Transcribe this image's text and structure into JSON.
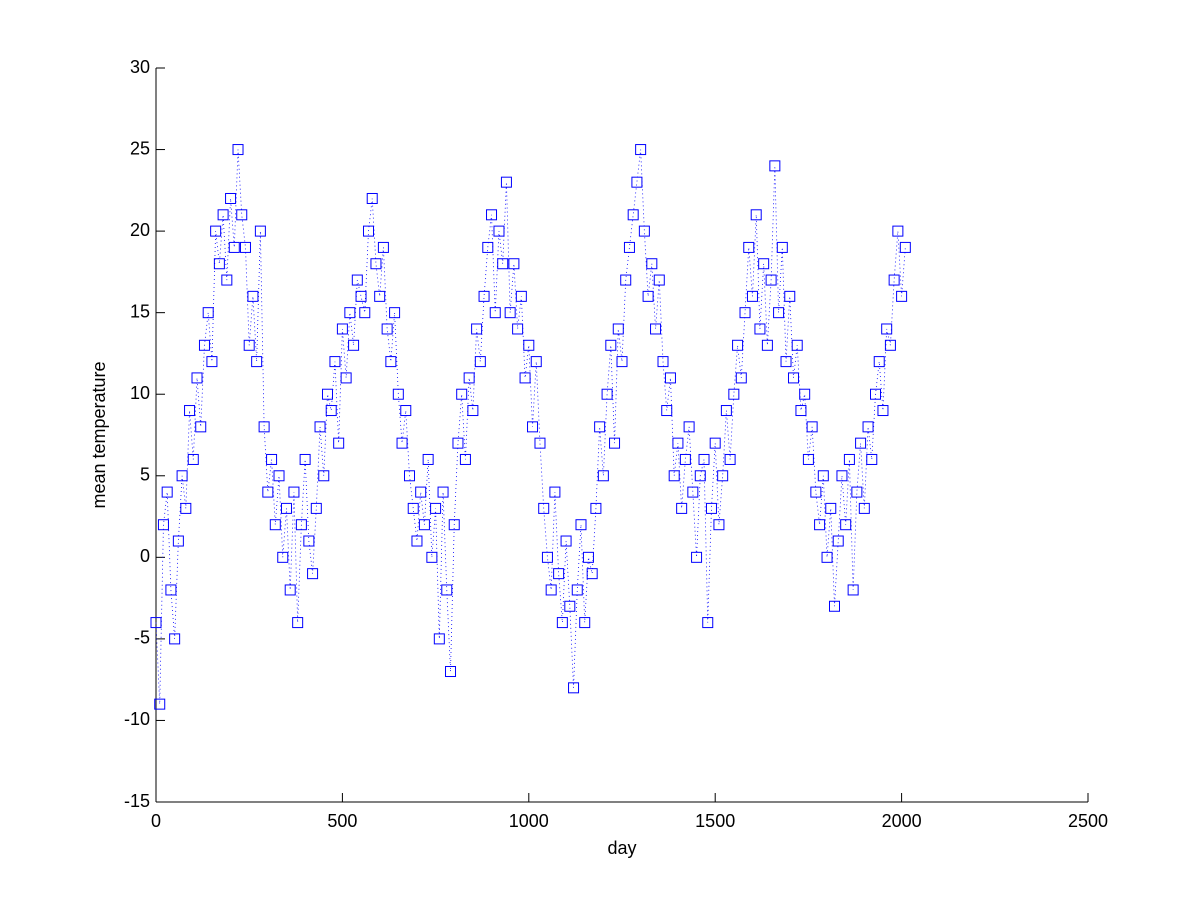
{
  "chart_data": {
    "type": "line",
    "xlabel": "day",
    "ylabel": "mean temperature",
    "xlim": [
      0,
      2500
    ],
    "ylim": [
      -15,
      30
    ],
    "xticks": [
      0,
      500,
      1000,
      1500,
      2000,
      2500
    ],
    "yticks": [
      -15,
      -10,
      -5,
      0,
      5,
      10,
      15,
      20,
      25,
      30
    ],
    "marker": "square",
    "linestyle": "dotted",
    "series": [
      {
        "color": "#0000ff",
        "x": [
          0,
          10,
          20,
          30,
          40,
          50,
          60,
          70,
          80,
          90,
          100,
          110,
          120,
          130,
          140,
          150,
          160,
          170,
          180,
          190,
          200,
          210,
          220,
          230,
          240,
          250,
          260,
          270,
          280,
          290,
          300,
          310,
          320,
          330,
          340,
          350,
          360,
          370,
          380,
          390,
          400,
          410,
          420,
          430,
          440,
          450,
          460,
          470,
          480,
          490,
          500,
          510,
          520,
          530,
          540,
          550,
          560,
          570,
          580,
          590,
          600,
          610,
          620,
          630,
          640,
          650,
          660,
          670,
          680,
          690,
          700,
          710,
          720,
          730,
          740,
          750,
          760,
          770,
          780,
          790,
          800,
          810,
          820,
          830,
          840,
          850,
          860,
          870,
          880,
          890,
          900,
          910,
          920,
          930,
          940,
          950,
          960,
          970,
          980,
          990,
          1000,
          1010,
          1020,
          1030,
          1040,
          1050,
          1060,
          1070,
          1080,
          1090,
          1100,
          1110,
          1120,
          1130,
          1140,
          1150,
          1160,
          1170,
          1180,
          1190,
          1200,
          1210,
          1220,
          1230,
          1240,
          1250,
          1260,
          1270,
          1280,
          1290,
          1300,
          1310,
          1320,
          1330,
          1340,
          1350,
          1360,
          1370,
          1380,
          1390,
          1400,
          1410,
          1420,
          1430,
          1440,
          1450,
          1460,
          1470,
          1480,
          1490,
          1500,
          1510,
          1520,
          1530,
          1540,
          1550,
          1560,
          1570,
          1580,
          1590,
          1600,
          1610,
          1620,
          1630,
          1640,
          1650,
          1660,
          1670,
          1680,
          1690,
          1700,
          1710,
          1720,
          1730,
          1740,
          1750,
          1760,
          1770,
          1780,
          1790,
          1800,
          1810,
          1820,
          1830,
          1840,
          1850,
          1860,
          1870,
          1880,
          1890,
          1900,
          1910,
          1920,
          1930,
          1940,
          1950,
          1960,
          1970,
          1980,
          1990,
          2000,
          2010
        ],
        "values": [
          -4,
          -9,
          2,
          4,
          -2,
          -5,
          1,
          5,
          3,
          9,
          6,
          11,
          8,
          13,
          15,
          12,
          20,
          18,
          21,
          17,
          22,
          19,
          25,
          21,
          19,
          13,
          16,
          12,
          20,
          8,
          4,
          6,
          2,
          5,
          0,
          3,
          -2,
          4,
          -4,
          2,
          6,
          1,
          -1,
          3,
          8,
          5,
          10,
          9,
          12,
          7,
          14,
          11,
          15,
          13,
          17,
          16,
          15,
          20,
          22,
          18,
          16,
          19,
          14,
          12,
          15,
          10,
          7,
          9,
          5,
          3,
          1,
          4,
          2,
          6,
          0,
          3,
          -5,
          4,
          -2,
          -7,
          2,
          7,
          10,
          6,
          11,
          9,
          14,
          12,
          16,
          19,
          21,
          15,
          20,
          18,
          23,
          15,
          18,
          14,
          16,
          11,
          13,
          8,
          12,
          7,
          3,
          0,
          -2,
          4,
          -1,
          -4,
          1,
          -3,
          -8,
          -2,
          2,
          -4,
          0,
          -1,
          3,
          8,
          5,
          10,
          13,
          7,
          14,
          12,
          17,
          19,
          21,
          23,
          25,
          20,
          16,
          18,
          14,
          17,
          12,
          9,
          11,
          5,
          7,
          3,
          6,
          8,
          4,
          0,
          5,
          6,
          -4,
          3,
          7,
          2,
          5,
          9,
          6,
          10,
          13,
          11,
          15,
          19,
          16,
          21,
          14,
          18,
          13,
          17,
          24,
          15,
          19,
          12,
          16,
          11,
          13,
          9,
          10,
          6,
          8,
          4,
          2,
          5,
          0,
          3,
          -3,
          1,
          5,
          2,
          6,
          -2,
          4,
          7,
          3,
          8,
          6,
          10,
          12,
          9,
          14,
          13,
          17,
          20,
          16,
          19
        ]
      }
    ]
  }
}
